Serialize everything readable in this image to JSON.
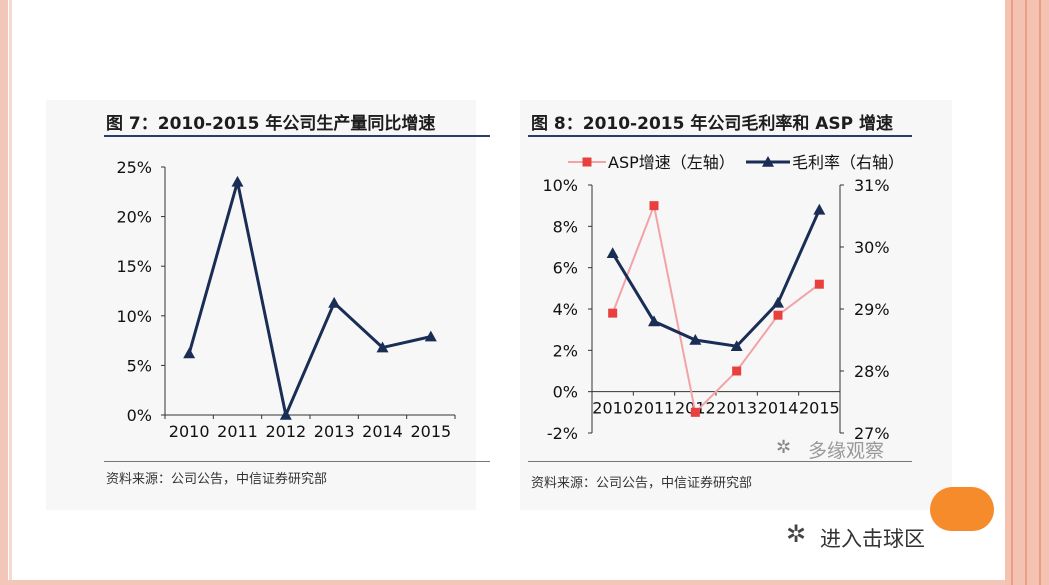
{
  "left_chart": {
    "title": "图 7：2010-2015 年公司生产量同比增速",
    "source": "资料来源：公司公告，中信证券研究部"
  },
  "right_chart": {
    "title": "图 8：2010-2015 年公司毛利率和 ASP 增速",
    "source": "资料来源：公司公告，中信证券研究部",
    "legend_asp": "ASP增速（左轴）",
    "legend_margin": "毛利率（右轴）"
  },
  "watermark_inner": "多缘观察",
  "watermark_bottom": "进入击球区",
  "colors": {
    "navy": "#1a2d55",
    "pink": "#f2a3a8",
    "red_marker": "#e8403c",
    "accent_orange": "#f58b2b"
  },
  "chart_data": [
    {
      "type": "line",
      "title": "图 7：2010-2015 年公司生产量同比增速",
      "categories": [
        "2010",
        "2011",
        "2012",
        "2013",
        "2014",
        "2015"
      ],
      "series": [
        {
          "values": [
            6.2,
            23.5,
            0.0,
            11.3,
            6.8,
            7.9
          ]
        }
      ],
      "ylim": [
        0,
        25
      ],
      "yticks": [
        "0%",
        "5%",
        "10%",
        "15%",
        "20%",
        "25%"
      ],
      "grid": false
    },
    {
      "type": "line",
      "title": "图 8：2010-2015 年公司毛利率和 ASP 增速",
      "categories": [
        "2010",
        "2011",
        "2012",
        "2013",
        "2014",
        "2015"
      ],
      "series": [
        {
          "name": "ASP增速（左轴）",
          "axis": "left",
          "values": [
            3.8,
            9.0,
            -1.0,
            1.0,
            3.7,
            5.2
          ]
        },
        {
          "name": "毛利率（右轴）",
          "axis": "right",
          "values": [
            29.9,
            28.8,
            28.5,
            28.4,
            29.1,
            30.6
          ]
        }
      ],
      "ylim_left": [
        -2,
        10
      ],
      "yticks_left": [
        "-2%",
        "0%",
        "2%",
        "4%",
        "6%",
        "8%",
        "10%"
      ],
      "ylim_right": [
        27,
        31
      ],
      "yticks_right": [
        "27%",
        "28%",
        "29%",
        "30%",
        "31%"
      ],
      "legend": "top",
      "grid": false
    }
  ]
}
